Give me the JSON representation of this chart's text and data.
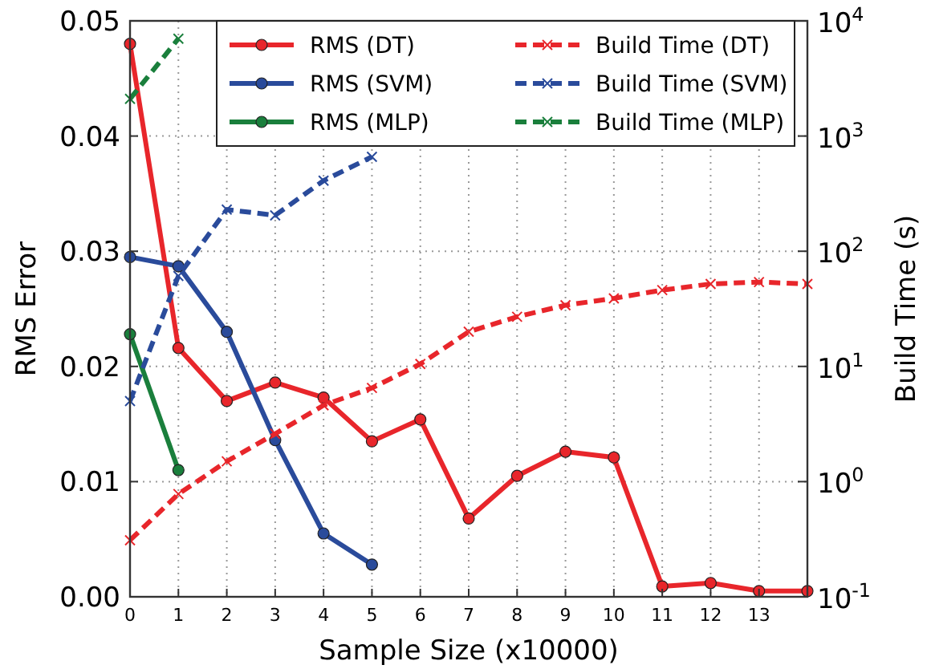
{
  "chart_data": {
    "type": "line",
    "xlabel": "Sample Size (x10000)",
    "ylabel": "RMS Error",
    "y2label": "Build Time (s)",
    "xlim": [
      0,
      14
    ],
    "xticks": [
      0,
      1,
      2,
      3,
      4,
      5,
      6,
      7,
      8,
      9,
      10,
      11,
      12,
      13
    ],
    "ylim": [
      0,
      0.05
    ],
    "yticks": [
      {
        "value": 0,
        "label": "0.00"
      },
      {
        "value": 0.01,
        "label": "0.01"
      },
      {
        "value": 0.02,
        "label": "0.02"
      },
      {
        "value": 0.03,
        "label": "0.03"
      },
      {
        "value": 0.04,
        "label": "0.04"
      },
      {
        "value": 0.05,
        "label": "0.05"
      }
    ],
    "y2lim": [
      0.1,
      10000
    ],
    "y2ticks": [
      {
        "value": 0.1,
        "label": "10$^{-1}$"
      },
      {
        "value": 1,
        "label": "10$^{0}$"
      },
      {
        "value": 10,
        "label": "10$^{1}$"
      },
      {
        "value": 100,
        "label": "10$^{2}$"
      },
      {
        "value": 1000,
        "label": "10$^{3}$"
      },
      {
        "value": 10000,
        "label": "10$^{4}$"
      }
    ],
    "log": "y2",
    "grid": true,
    "legend": "top right",
    "series": [
      {
        "name": "RMS (DT)",
        "color": "#e8262b",
        "marker": "circle",
        "line_style": "solid",
        "x": [
          0,
          1,
          2,
          3,
          4,
          5,
          6,
          7,
          8,
          9,
          10,
          11,
          12,
          13,
          14
        ],
        "values": [
          0.048,
          0.0216,
          0.017,
          0.0186,
          0.0173,
          0.0135,
          0.0154,
          0.0068,
          0.0105,
          0.0126,
          0.0121,
          0.0009,
          0.0012,
          0.0005,
          0.0005
        ]
      },
      {
        "name": "RMS (SVM)",
        "color": "#2a4b9b",
        "marker": "circle",
        "line_style": "solid",
        "x": [
          0,
          1,
          2,
          3,
          4,
          5
        ],
        "values": [
          0.0295,
          0.0287,
          0.023,
          0.0136,
          0.0055,
          0.0028
        ]
      },
      {
        "name": "RMS (MLP)",
        "color": "#1a7f3c",
        "marker": "circle",
        "line_style": "solid",
        "x": [
          0,
          1
        ],
        "values": [
          0.0228,
          0.011
        ]
      },
      {
        "name": "Build Time (DT)",
        "color": "#e8262b",
        "marker": "cross",
        "line_style": "dashed",
        "axis": "y2",
        "x": [
          0,
          1,
          2,
          3,
          4,
          5,
          6,
          7,
          8,
          9,
          10,
          11,
          12,
          13,
          14
        ],
        "values": [
          0.31,
          0.78,
          1.5,
          2.6,
          4.6,
          6.5,
          10.5,
          20,
          27,
          34,
          39,
          46,
          52,
          54,
          52
        ]
      },
      {
        "name": "Build Time (SVM)",
        "color": "#2a4b9b",
        "marker": "cross",
        "line_style": "dashed",
        "axis": "y2",
        "x": [
          0,
          1,
          2,
          3,
          4,
          5
        ],
        "values": [
          5,
          61,
          230,
          205,
          410,
          660
        ]
      },
      {
        "name": "Build Time (MLP)",
        "color": "#1a7f3c",
        "marker": "cross",
        "line_style": "dashed",
        "axis": "y2",
        "x": [
          0,
          1
        ],
        "values": [
          2100,
          7000
        ]
      }
    ]
  }
}
